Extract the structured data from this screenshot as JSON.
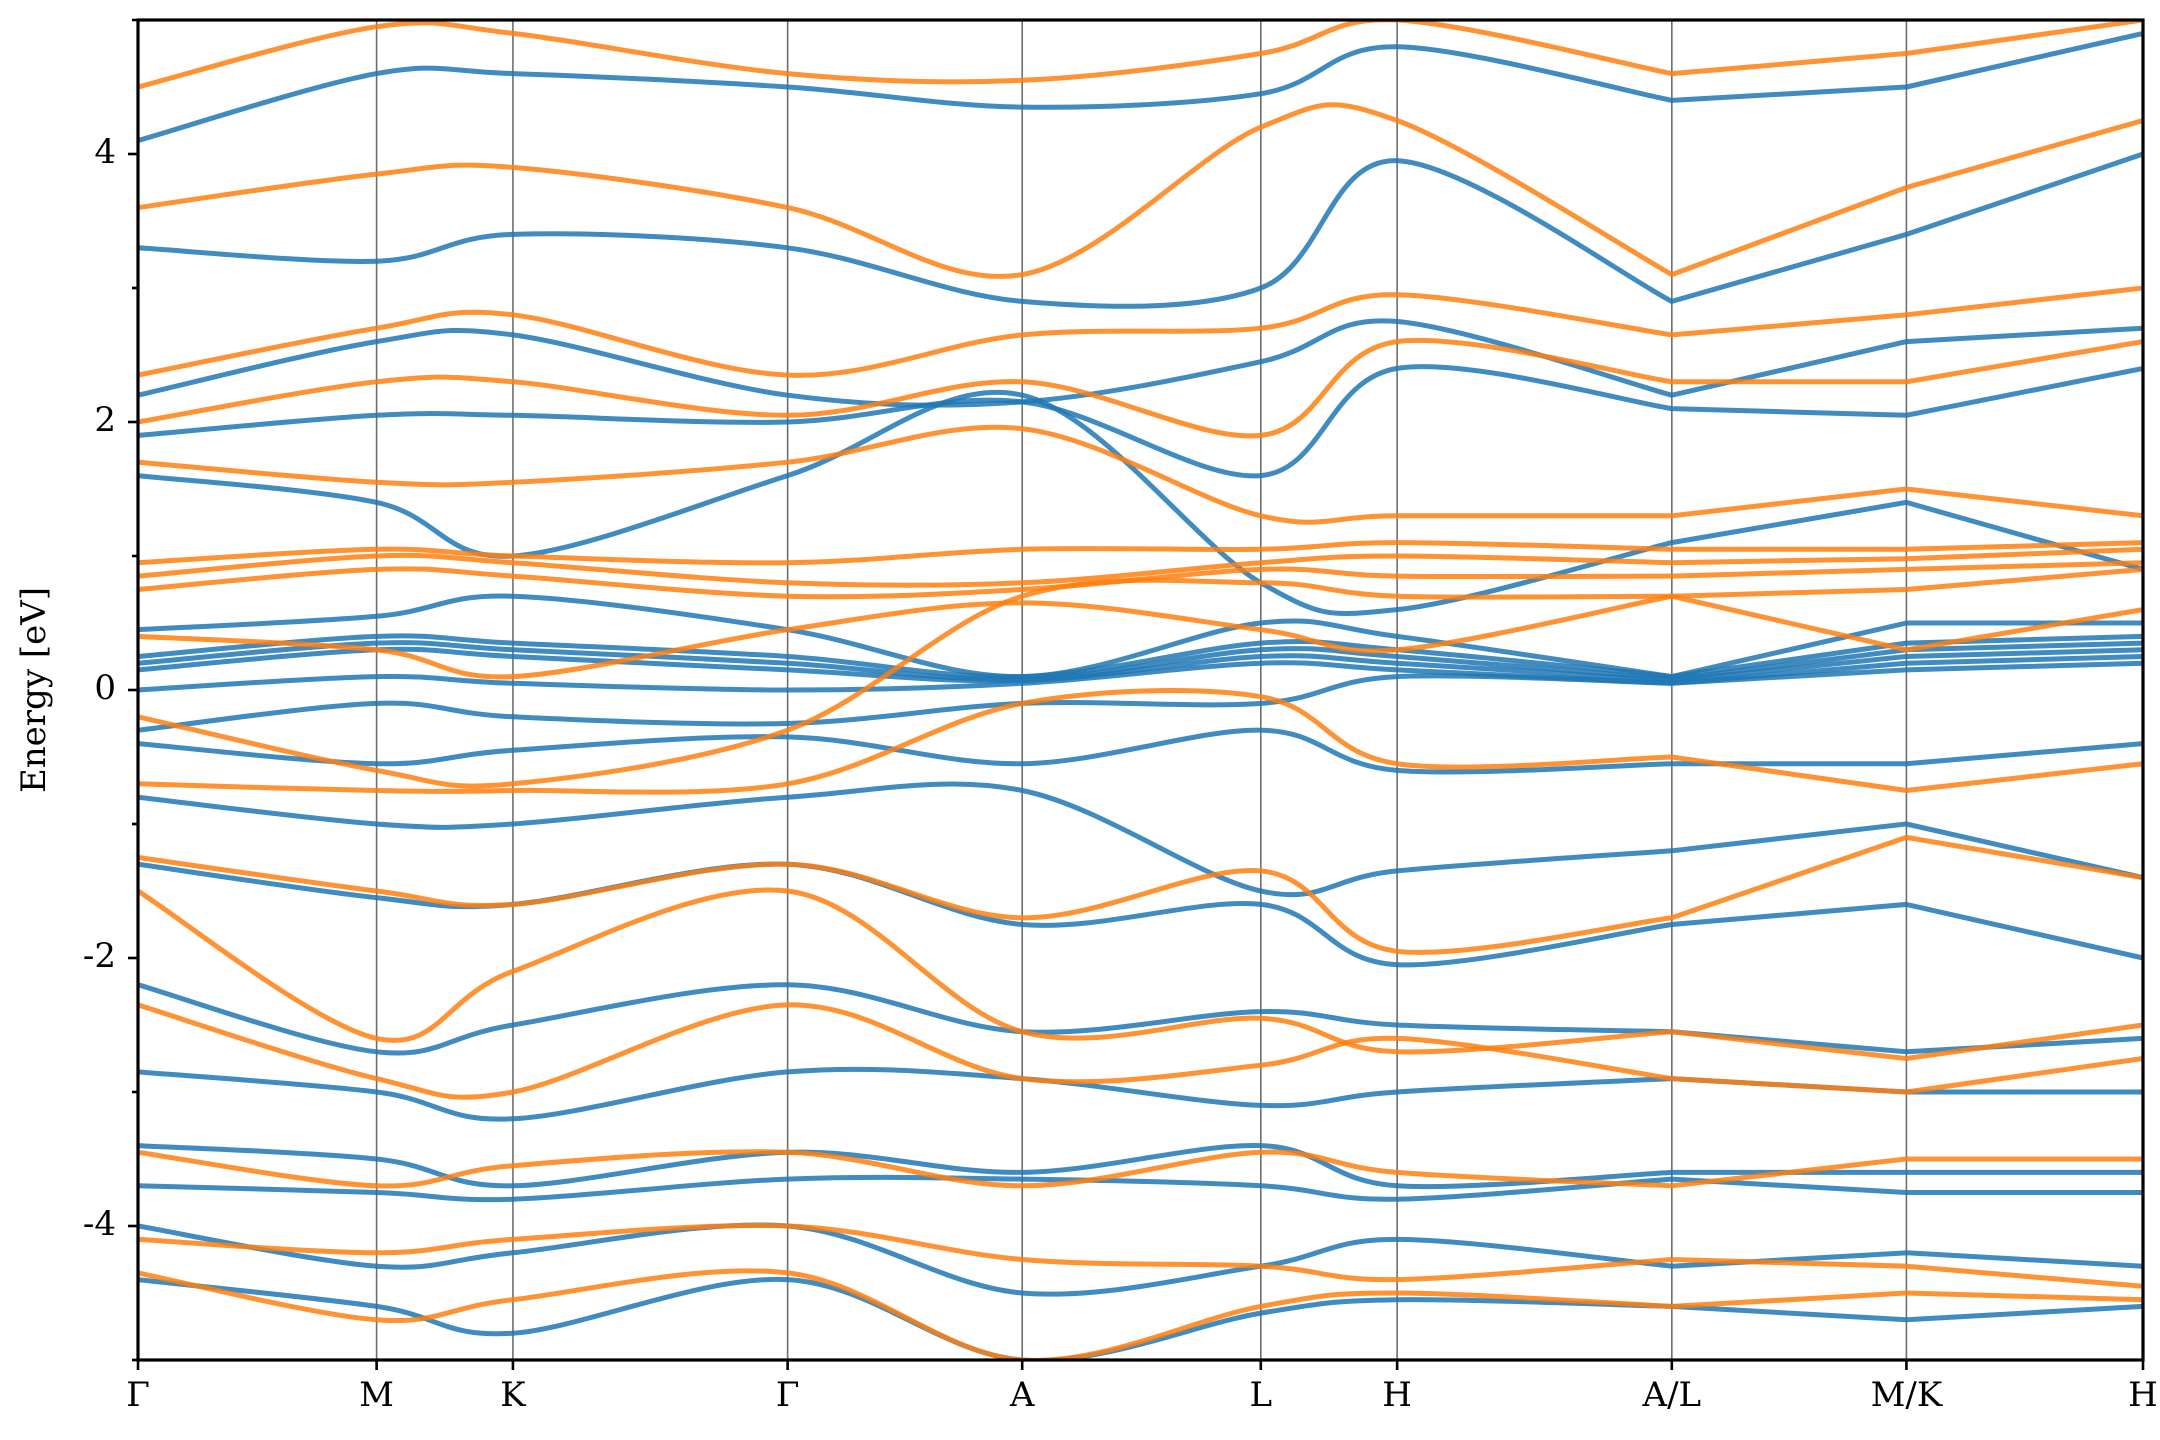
{
  "chart_data": {
    "type": "line",
    "title": "",
    "xlabel": "",
    "ylabel": "Energy [eV]",
    "ylim": [
      -5,
      5
    ],
    "yticks": [
      -4,
      -2,
      0,
      2,
      4
    ],
    "ytick_labels": [
      "-4",
      "-2",
      "0",
      "2",
      "4"
    ],
    "grid": false,
    "legend": "none",
    "x_range": [
      0,
      10
    ],
    "high_symmetry_points": [
      {
        "label": "Γ",
        "x": 0.0
      },
      {
        "label": "M",
        "x": 1.19
      },
      {
        "label": "K",
        "x": 1.87
      },
      {
        "label": "Γ",
        "x": 3.24
      },
      {
        "label": "A",
        "x": 4.41
      },
      {
        "label": "L",
        "x": 5.6
      },
      {
        "label": "H",
        "x": 6.28
      },
      {
        "label": "A/L",
        "x": 7.65
      },
      {
        "label": "M/K",
        "x": 8.82
      },
      {
        "label": "H",
        "x": 10.0
      }
    ],
    "colors": {
      "blue": "#1f77b4",
      "orange": "#ff7f0e"
    },
    "series": [
      {
        "color": "#1f77b4",
        "values": [
          4.1,
          4.6,
          4.6,
          4.5,
          4.35,
          4.45,
          4.8,
          4.4,
          4.5,
          4.9
        ]
      },
      {
        "color": "#1f77b4",
        "values": [
          3.3,
          3.2,
          3.4,
          3.3,
          2.9,
          3.0,
          3.95,
          2.9,
          3.4,
          4.0
        ]
      },
      {
        "color": "#1f77b4",
        "values": [
          2.2,
          2.6,
          2.65,
          2.2,
          2.15,
          2.45,
          2.75,
          2.2,
          2.6,
          2.7
        ]
      },
      {
        "color": "#1f77b4",
        "values": [
          1.9,
          2.05,
          2.05,
          2.0,
          2.15,
          1.6,
          2.4,
          2.1,
          2.05,
          2.4
        ]
      },
      {
        "color": "#1f77b4",
        "values": [
          1.6,
          1.4,
          1.0,
          1.6,
          2.2,
          0.8,
          0.6,
          1.1,
          1.4,
          0.9
        ]
      },
      {
        "color": "#1f77b4",
        "values": [
          0.45,
          0.55,
          0.7,
          0.45,
          0.1,
          0.5,
          0.4,
          0.1,
          0.5,
          0.5
        ]
      },
      {
        "color": "#1f77b4",
        "values": [
          0.25,
          0.4,
          0.35,
          0.25,
          0.1,
          0.35,
          0.3,
          0.1,
          0.35,
          0.4
        ]
      },
      {
        "color": "#1f77b4",
        "values": [
          0.2,
          0.35,
          0.3,
          0.2,
          0.08,
          0.3,
          0.25,
          0.08,
          0.3,
          0.35
        ]
      },
      {
        "color": "#1f77b4",
        "values": [
          0.15,
          0.3,
          0.25,
          0.15,
          0.07,
          0.25,
          0.2,
          0.07,
          0.25,
          0.3
        ]
      },
      {
        "color": "#1f77b4",
        "values": [
          0.0,
          0.1,
          0.05,
          0.0,
          0.05,
          0.2,
          0.15,
          0.05,
          0.2,
          0.25
        ]
      },
      {
        "color": "#1f77b4",
        "values": [
          -0.3,
          -0.1,
          -0.2,
          -0.25,
          -0.1,
          -0.1,
          0.1,
          0.05,
          0.15,
          0.2
        ]
      },
      {
        "color": "#1f77b4",
        "values": [
          -0.4,
          -0.55,
          -0.45,
          -0.35,
          -0.55,
          -0.3,
          -0.6,
          -0.55,
          -0.55,
          -0.4
        ]
      },
      {
        "color": "#1f77b4",
        "values": [
          -0.8,
          -1.0,
          -1.0,
          -0.8,
          -0.75,
          -1.5,
          -1.35,
          -1.2,
          -1.0,
          -1.4
        ]
      },
      {
        "color": "#1f77b4",
        "values": [
          -1.3,
          -1.55,
          -1.6,
          -1.3,
          -1.75,
          -1.6,
          -2.05,
          -1.75,
          -1.6,
          -2.0
        ]
      },
      {
        "color": "#1f77b4",
        "values": [
          -2.2,
          -2.7,
          -2.5,
          -2.2,
          -2.55,
          -2.4,
          -2.5,
          -2.55,
          -2.7,
          -2.6
        ]
      },
      {
        "color": "#1f77b4",
        "values": [
          -2.85,
          -3.0,
          -3.2,
          -2.85,
          -2.9,
          -3.1,
          -3.0,
          -2.9,
          -3.0,
          -3.0
        ]
      },
      {
        "color": "#1f77b4",
        "values": [
          -3.4,
          -3.5,
          -3.7,
          -3.45,
          -3.6,
          -3.4,
          -3.7,
          -3.6,
          -3.6,
          -3.6
        ]
      },
      {
        "color": "#1f77b4",
        "values": [
          -3.7,
          -3.75,
          -3.8,
          -3.65,
          -3.65,
          -3.7,
          -3.8,
          -3.65,
          -3.75,
          -3.75
        ]
      },
      {
        "color": "#1f77b4",
        "values": [
          -4.0,
          -4.3,
          -4.2,
          -4.0,
          -4.5,
          -4.3,
          -4.1,
          -4.3,
          -4.2,
          -4.3
        ]
      },
      {
        "color": "#1f77b4",
        "values": [
          -4.4,
          -4.6,
          -4.8,
          -4.4,
          -5.0,
          -4.65,
          -4.55,
          -4.6,
          -4.7,
          -4.6
        ]
      },
      {
        "color": "#ff7f0e",
        "values": [
          4.5,
          4.95,
          4.9,
          4.6,
          4.55,
          4.75,
          5.0,
          4.6,
          4.75,
          5.0
        ]
      },
      {
        "color": "#ff7f0e",
        "values": [
          3.6,
          3.85,
          3.9,
          3.6,
          3.1,
          4.2,
          4.25,
          3.1,
          3.75,
          4.25
        ]
      },
      {
        "color": "#ff7f0e",
        "values": [
          2.35,
          2.7,
          2.8,
          2.35,
          2.65,
          2.7,
          2.95,
          2.65,
          2.8,
          3.0
        ]
      },
      {
        "color": "#ff7f0e",
        "values": [
          2.0,
          2.3,
          2.3,
          2.05,
          2.3,
          1.9,
          2.6,
          2.3,
          2.3,
          2.6
        ]
      },
      {
        "color": "#ff7f0e",
        "values": [
          1.7,
          1.55,
          1.55,
          1.7,
          1.95,
          1.3,
          1.3,
          1.3,
          1.5,
          1.3
        ]
      },
      {
        "color": "#ff7f0e",
        "values": [
          0.95,
          1.05,
          1.0,
          0.95,
          1.05,
          1.05,
          1.1,
          1.05,
          1.05,
          1.1
        ]
      },
      {
        "color": "#ff7f0e",
        "values": [
          0.85,
          1.0,
          0.95,
          0.8,
          0.8,
          0.95,
          1.0,
          0.95,
          0.98,
          1.05
        ]
      },
      {
        "color": "#ff7f0e",
        "values": [
          0.75,
          0.9,
          0.85,
          0.7,
          0.75,
          0.9,
          0.85,
          0.85,
          0.9,
          0.95
        ]
      },
      {
        "color": "#ff7f0e",
        "values": [
          0.4,
          0.3,
          0.1,
          0.45,
          0.65,
          0.45,
          0.3,
          0.7,
          0.3,
          0.6
        ]
      },
      {
        "color": "#ff7f0e",
        "values": [
          -0.2,
          -0.6,
          -0.7,
          -0.3,
          0.7,
          0.8,
          0.7,
          0.7,
          0.75,
          0.9
        ]
      },
      {
        "color": "#ff7f0e",
        "values": [
          -0.7,
          -0.75,
          -0.75,
          -0.7,
          -0.1,
          -0.05,
          -0.55,
          -0.5,
          -0.75,
          -0.55
        ]
      },
      {
        "color": "#ff7f0e",
        "values": [
          -1.25,
          -1.5,
          -1.6,
          -1.3,
          -1.7,
          -1.35,
          -1.95,
          -1.7,
          -1.1,
          -1.4
        ]
      },
      {
        "color": "#ff7f0e",
        "values": [
          -1.5,
          -2.6,
          -2.1,
          -1.5,
          -2.55,
          -2.45,
          -2.7,
          -2.55,
          -2.75,
          -2.5
        ]
      },
      {
        "color": "#ff7f0e",
        "values": [
          -2.35,
          -2.9,
          -3.0,
          -2.35,
          -2.9,
          -2.8,
          -2.6,
          -2.9,
          -3.0,
          -2.75
        ]
      },
      {
        "color": "#ff7f0e",
        "values": [
          -3.45,
          -3.7,
          -3.55,
          -3.45,
          -3.7,
          -3.45,
          -3.6,
          -3.7,
          -3.5,
          -3.5
        ]
      },
      {
        "color": "#ff7f0e",
        "values": [
          -4.1,
          -4.2,
          -4.1,
          -4.0,
          -4.25,
          -4.3,
          -4.4,
          -4.25,
          -4.3,
          -4.45
        ]
      },
      {
        "color": "#ff7f0e",
        "values": [
          -4.35,
          -4.7,
          -4.55,
          -4.35,
          -5.0,
          -4.6,
          -4.5,
          -4.6,
          -4.5,
          -4.55
        ]
      }
    ]
  }
}
